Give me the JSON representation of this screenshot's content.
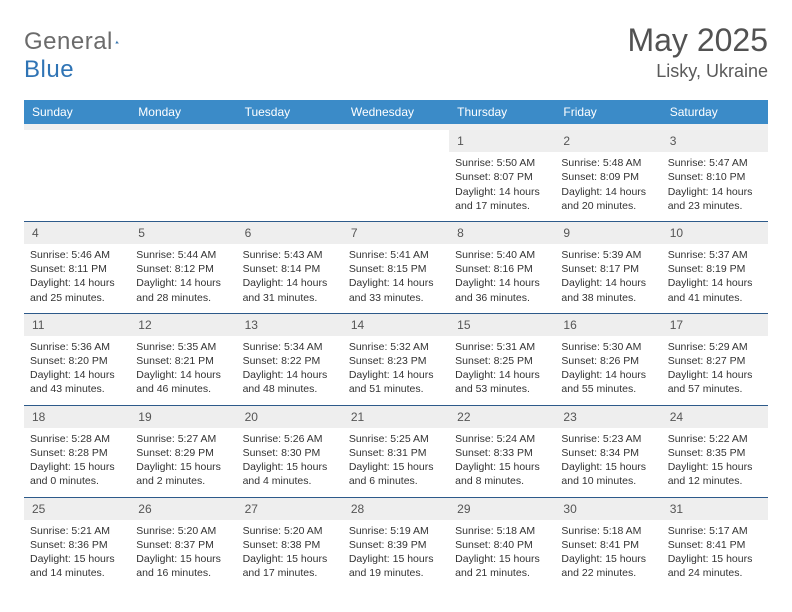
{
  "brand": {
    "name_a": "General",
    "name_b": "Blue",
    "accent": "#2f74b5"
  },
  "title": {
    "month": "May 2025",
    "location": "Lisky, Ukraine"
  },
  "colors": {
    "header_bg": "#3b8bc8",
    "header_text": "#ffffff",
    "daynum_bg": "#eeeeee",
    "week_border": "#2d5a8a",
    "text": "#333333",
    "title_text": "#525252"
  },
  "weekdays": [
    "Sunday",
    "Monday",
    "Tuesday",
    "Wednesday",
    "Thursday",
    "Friday",
    "Saturday"
  ],
  "weeks": [
    [
      {
        "n": "",
        "lines": [
          "",
          "",
          "",
          ""
        ]
      },
      {
        "n": "",
        "lines": [
          "",
          "",
          "",
          ""
        ]
      },
      {
        "n": "",
        "lines": [
          "",
          "",
          "",
          ""
        ]
      },
      {
        "n": "",
        "lines": [
          "",
          "",
          "",
          ""
        ]
      },
      {
        "n": "1",
        "lines": [
          "Sunrise: 5:50 AM",
          "Sunset: 8:07 PM",
          "Daylight: 14 hours",
          "and 17 minutes."
        ]
      },
      {
        "n": "2",
        "lines": [
          "Sunrise: 5:48 AM",
          "Sunset: 8:09 PM",
          "Daylight: 14 hours",
          "and 20 minutes."
        ]
      },
      {
        "n": "3",
        "lines": [
          "Sunrise: 5:47 AM",
          "Sunset: 8:10 PM",
          "Daylight: 14 hours",
          "and 23 minutes."
        ]
      }
    ],
    [
      {
        "n": "4",
        "lines": [
          "Sunrise: 5:46 AM",
          "Sunset: 8:11 PM",
          "Daylight: 14 hours",
          "and 25 minutes."
        ]
      },
      {
        "n": "5",
        "lines": [
          "Sunrise: 5:44 AM",
          "Sunset: 8:12 PM",
          "Daylight: 14 hours",
          "and 28 minutes."
        ]
      },
      {
        "n": "6",
        "lines": [
          "Sunrise: 5:43 AM",
          "Sunset: 8:14 PM",
          "Daylight: 14 hours",
          "and 31 minutes."
        ]
      },
      {
        "n": "7",
        "lines": [
          "Sunrise: 5:41 AM",
          "Sunset: 8:15 PM",
          "Daylight: 14 hours",
          "and 33 minutes."
        ]
      },
      {
        "n": "8",
        "lines": [
          "Sunrise: 5:40 AM",
          "Sunset: 8:16 PM",
          "Daylight: 14 hours",
          "and 36 minutes."
        ]
      },
      {
        "n": "9",
        "lines": [
          "Sunrise: 5:39 AM",
          "Sunset: 8:17 PM",
          "Daylight: 14 hours",
          "and 38 minutes."
        ]
      },
      {
        "n": "10",
        "lines": [
          "Sunrise: 5:37 AM",
          "Sunset: 8:19 PM",
          "Daylight: 14 hours",
          "and 41 minutes."
        ]
      }
    ],
    [
      {
        "n": "11",
        "lines": [
          "Sunrise: 5:36 AM",
          "Sunset: 8:20 PM",
          "Daylight: 14 hours",
          "and 43 minutes."
        ]
      },
      {
        "n": "12",
        "lines": [
          "Sunrise: 5:35 AM",
          "Sunset: 8:21 PM",
          "Daylight: 14 hours",
          "and 46 minutes."
        ]
      },
      {
        "n": "13",
        "lines": [
          "Sunrise: 5:34 AM",
          "Sunset: 8:22 PM",
          "Daylight: 14 hours",
          "and 48 minutes."
        ]
      },
      {
        "n": "14",
        "lines": [
          "Sunrise: 5:32 AM",
          "Sunset: 8:23 PM",
          "Daylight: 14 hours",
          "and 51 minutes."
        ]
      },
      {
        "n": "15",
        "lines": [
          "Sunrise: 5:31 AM",
          "Sunset: 8:25 PM",
          "Daylight: 14 hours",
          "and 53 minutes."
        ]
      },
      {
        "n": "16",
        "lines": [
          "Sunrise: 5:30 AM",
          "Sunset: 8:26 PM",
          "Daylight: 14 hours",
          "and 55 minutes."
        ]
      },
      {
        "n": "17",
        "lines": [
          "Sunrise: 5:29 AM",
          "Sunset: 8:27 PM",
          "Daylight: 14 hours",
          "and 57 minutes."
        ]
      }
    ],
    [
      {
        "n": "18",
        "lines": [
          "Sunrise: 5:28 AM",
          "Sunset: 8:28 PM",
          "Daylight: 15 hours",
          "and 0 minutes."
        ]
      },
      {
        "n": "19",
        "lines": [
          "Sunrise: 5:27 AM",
          "Sunset: 8:29 PM",
          "Daylight: 15 hours",
          "and 2 minutes."
        ]
      },
      {
        "n": "20",
        "lines": [
          "Sunrise: 5:26 AM",
          "Sunset: 8:30 PM",
          "Daylight: 15 hours",
          "and 4 minutes."
        ]
      },
      {
        "n": "21",
        "lines": [
          "Sunrise: 5:25 AM",
          "Sunset: 8:31 PM",
          "Daylight: 15 hours",
          "and 6 minutes."
        ]
      },
      {
        "n": "22",
        "lines": [
          "Sunrise: 5:24 AM",
          "Sunset: 8:33 PM",
          "Daylight: 15 hours",
          "and 8 minutes."
        ]
      },
      {
        "n": "23",
        "lines": [
          "Sunrise: 5:23 AM",
          "Sunset: 8:34 PM",
          "Daylight: 15 hours",
          "and 10 minutes."
        ]
      },
      {
        "n": "24",
        "lines": [
          "Sunrise: 5:22 AM",
          "Sunset: 8:35 PM",
          "Daylight: 15 hours",
          "and 12 minutes."
        ]
      }
    ],
    [
      {
        "n": "25",
        "lines": [
          "Sunrise: 5:21 AM",
          "Sunset: 8:36 PM",
          "Daylight: 15 hours",
          "and 14 minutes."
        ]
      },
      {
        "n": "26",
        "lines": [
          "Sunrise: 5:20 AM",
          "Sunset: 8:37 PM",
          "Daylight: 15 hours",
          "and 16 minutes."
        ]
      },
      {
        "n": "27",
        "lines": [
          "Sunrise: 5:20 AM",
          "Sunset: 8:38 PM",
          "Daylight: 15 hours",
          "and 17 minutes."
        ]
      },
      {
        "n": "28",
        "lines": [
          "Sunrise: 5:19 AM",
          "Sunset: 8:39 PM",
          "Daylight: 15 hours",
          "and 19 minutes."
        ]
      },
      {
        "n": "29",
        "lines": [
          "Sunrise: 5:18 AM",
          "Sunset: 8:40 PM",
          "Daylight: 15 hours",
          "and 21 minutes."
        ]
      },
      {
        "n": "30",
        "lines": [
          "Sunrise: 5:18 AM",
          "Sunset: 8:41 PM",
          "Daylight: 15 hours",
          "and 22 minutes."
        ]
      },
      {
        "n": "31",
        "lines": [
          "Sunrise: 5:17 AM",
          "Sunset: 8:41 PM",
          "Daylight: 15 hours",
          "and 24 minutes."
        ]
      }
    ]
  ]
}
